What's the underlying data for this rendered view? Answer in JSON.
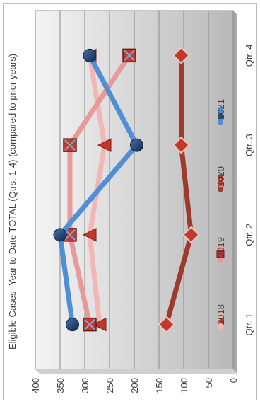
{
  "chart_data": {
    "type": "line",
    "title": "Eligible Cases -Year to Date TOTAL (Qtrs. 1-4) (compared to prior years)",
    "categories": [
      "Qtr. 1",
      "Qtr. 2",
      "Qtr. 3",
      "Qtr. 4"
    ],
    "ylim": [
      0,
      400
    ],
    "yticks": [
      "0",
      "50",
      "100",
      "150",
      "200",
      "250",
      "300",
      "350",
      "400"
    ],
    "grid": true,
    "legend_position": "bottom",
    "orientation": "rotated 90 degrees clockwise",
    "series": [
      {
        "name": "2018",
        "values": [
          270,
          290,
          260,
          290
        ],
        "color": "#f2b6b6",
        "marker": "triangle"
      },
      {
        "name": "2019",
        "values": [
          290,
          330,
          330,
          210
        ],
        "color": "#e89a9a",
        "marker": "square-x"
      },
      {
        "name": "2020",
        "values": [
          135,
          85,
          105,
          105
        ],
        "color": "#9c3a2e",
        "marker": "diamond"
      },
      {
        "name": "2021",
        "values": [
          325,
          350,
          195,
          290
        ],
        "color": "#4f8fd6",
        "marker": "circle"
      }
    ]
  }
}
